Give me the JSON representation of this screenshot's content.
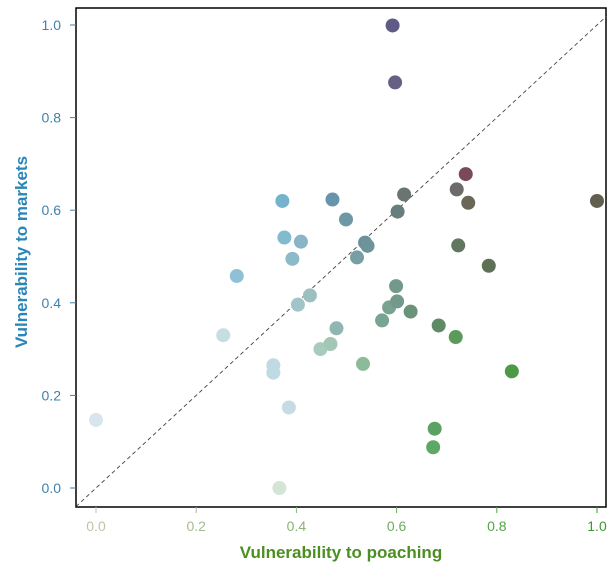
{
  "chart_data": {
    "type": "scatter",
    "title": "",
    "xlabel": "Vulnerability to poaching",
    "ylabel": "Vulnerability to markets",
    "xlim": [
      -0.04,
      1.02
    ],
    "ylim": [
      -0.04,
      1.03
    ],
    "x_ticks": [
      "0.0",
      "0.2",
      "0.4",
      "0.6",
      "0.8",
      "1.0"
    ],
    "y_ticks": [
      "0.0",
      "0.2",
      "0.4",
      "0.6",
      "0.8",
      "1.0"
    ],
    "grid": false,
    "diagonal_reference_line": true,
    "colors": {
      "xlabel": "#4a8f1f",
      "ylabel": "#2b86b8",
      "x_tick_low": "#b9c7a8",
      "x_tick_high": "#3a9a2e",
      "y_tick": "#3d82ad"
    },
    "points": [
      {
        "x": 0.0,
        "y": 0.147,
        "color": "#d6e6ec"
      },
      {
        "x": 0.254,
        "y": 0.33,
        "color": "#c6dde6"
      },
      {
        "x": 0.281,
        "y": 0.458,
        "color": "#8fc0d5"
      },
      {
        "x": 0.354,
        "y": 0.265,
        "color": "#c0dae4"
      },
      {
        "x": 0.354,
        "y": 0.249,
        "color": "#c0dae4"
      },
      {
        "x": 0.366,
        "y": 0.0,
        "color": "#d4e5d6"
      },
      {
        "x": 0.372,
        "y": 0.62,
        "color": "#75b3cd"
      },
      {
        "x": 0.376,
        "y": 0.541,
        "color": "#82bace"
      },
      {
        "x": 0.385,
        "y": 0.174,
        "color": "#c7dbe2"
      },
      {
        "x": 0.392,
        "y": 0.495,
        "color": "#8dbac8"
      },
      {
        "x": 0.403,
        "y": 0.396,
        "color": "#a2c4c8"
      },
      {
        "x": 0.409,
        "y": 0.532,
        "color": "#8ab5c6"
      },
      {
        "x": 0.427,
        "y": 0.416,
        "color": "#9cbfc0"
      },
      {
        "x": 0.448,
        "y": 0.3,
        "color": "#a8cbbb"
      },
      {
        "x": 0.468,
        "y": 0.311,
        "color": "#a3c7b7"
      },
      {
        "x": 0.472,
        "y": 0.623,
        "color": "#6793ab"
      },
      {
        "x": 0.48,
        "y": 0.345,
        "color": "#90b6b3"
      },
      {
        "x": 0.499,
        "y": 0.58,
        "color": "#6f98a6"
      },
      {
        "x": 0.521,
        "y": 0.498,
        "color": "#779ea4"
      },
      {
        "x": 0.533,
        "y": 0.268,
        "color": "#8dbb99"
      },
      {
        "x": 0.537,
        "y": 0.53,
        "color": "#6d919b"
      },
      {
        "x": 0.542,
        "y": 0.523,
        "color": "#6d939b"
      },
      {
        "x": 0.571,
        "y": 0.362,
        "color": "#78a591"
      },
      {
        "x": 0.585,
        "y": 0.39,
        "color": "#78a390"
      },
      {
        "x": 0.592,
        "y": 0.999,
        "color": "#5f5a86"
      },
      {
        "x": 0.597,
        "y": 0.876,
        "color": "#675f84"
      },
      {
        "x": 0.599,
        "y": 0.436,
        "color": "#72998a"
      },
      {
        "x": 0.601,
        "y": 0.403,
        "color": "#72998a"
      },
      {
        "x": 0.602,
        "y": 0.597,
        "color": "#667f7e"
      },
      {
        "x": 0.615,
        "y": 0.634,
        "color": "#6a7570"
      },
      {
        "x": 0.628,
        "y": 0.381,
        "color": "#6a9379"
      },
      {
        "x": 0.673,
        "y": 0.088,
        "color": "#5ea865"
      },
      {
        "x": 0.676,
        "y": 0.128,
        "color": "#5aa263"
      },
      {
        "x": 0.684,
        "y": 0.351,
        "color": "#5f8a66"
      },
      {
        "x": 0.718,
        "y": 0.326,
        "color": "#5a9a5b"
      },
      {
        "x": 0.72,
        "y": 0.645,
        "color": "#6c6b69"
      },
      {
        "x": 0.723,
        "y": 0.524,
        "color": "#61785f"
      },
      {
        "x": 0.738,
        "y": 0.678,
        "color": "#7a4a5c"
      },
      {
        "x": 0.743,
        "y": 0.616,
        "color": "#6b6757"
      },
      {
        "x": 0.784,
        "y": 0.48,
        "color": "#5d7156"
      },
      {
        "x": 0.83,
        "y": 0.252,
        "color": "#4c9a45"
      },
      {
        "x": 1.0,
        "y": 0.62,
        "color": "#625f4f"
      }
    ]
  }
}
